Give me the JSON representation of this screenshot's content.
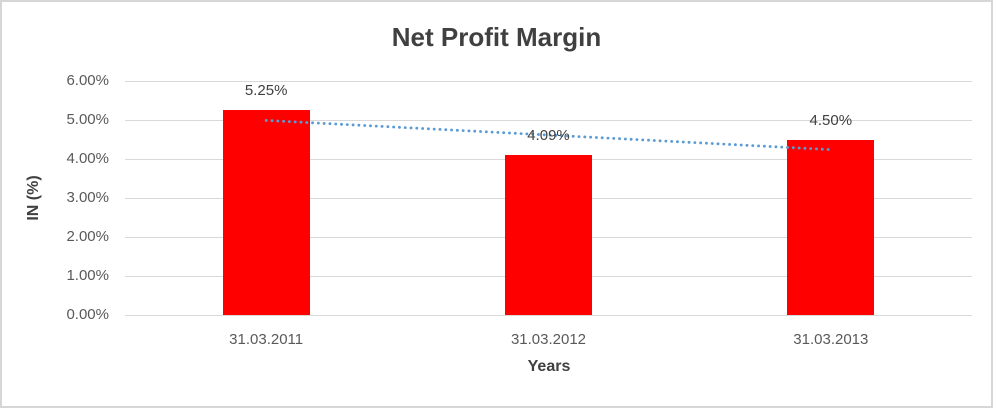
{
  "window": {
    "background": "#ffffff",
    "frame_border_color": "#d6d6d6"
  },
  "chart_data": {
    "type": "bar",
    "title": "Net Profit Margin",
    "categories": [
      "31.03.2011",
      "31.03.2012",
      "31.03.2013"
    ],
    "values": [
      5.25,
      4.09,
      4.5
    ],
    "data_labels": [
      "5.25%",
      "4.09%",
      "4.50%"
    ],
    "xlabel": "Years",
    "ylabel": "IN (%)",
    "ylim": [
      0,
      6
    ],
    "ytick_labels": [
      "0.00%",
      "1.00%",
      "2.00%",
      "3.00%",
      "4.00%",
      "5.00%",
      "6.00%"
    ],
    "grid": true,
    "legend": "none",
    "bar_color": "#ff0000",
    "gridline_color": "#d9d9d9",
    "tick_text_color": "#595959",
    "data_label_color": "#404040",
    "title_color": "#404040",
    "trendline": {
      "type": "linear",
      "style": "dotted",
      "color": "#5b9bd5",
      "start_value": 4.99,
      "end_value": 4.24
    }
  }
}
